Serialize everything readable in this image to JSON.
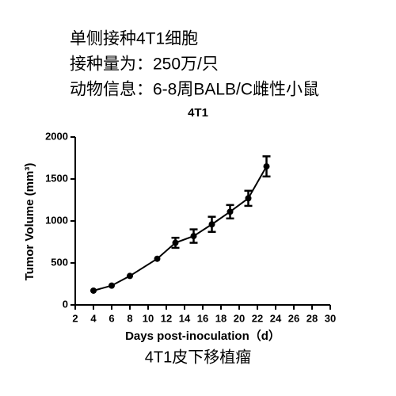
{
  "notes": [
    "单侧接种4T1细胞",
    "接种量为：250万/只",
    "动物信息：6-8周BALB/C雌性小鼠"
  ],
  "caption": "4T1皮下移植瘤",
  "chart_data": {
    "type": "line",
    "title": "4T1",
    "x_label": "Days post-inoculation（d）",
    "y_label": "Tumor Volume (mm³)",
    "x": [
      4,
      6,
      8,
      11,
      13,
      15,
      17,
      19,
      21,
      23
    ],
    "values": [
      170,
      230,
      345,
      550,
      740,
      820,
      960,
      1110,
      1270,
      1650
    ],
    "errors": [
      0,
      0,
      0,
      0,
      60,
      80,
      90,
      80,
      90,
      120
    ],
    "color": "#000000",
    "xlim": [
      2,
      30
    ],
    "xticks": [
      2,
      4,
      6,
      8,
      10,
      12,
      14,
      16,
      18,
      20,
      22,
      24,
      26,
      28,
      30
    ],
    "ylim": [
      0,
      2000
    ],
    "yticks": [
      0,
      500,
      1000,
      1500,
      2000
    ]
  }
}
